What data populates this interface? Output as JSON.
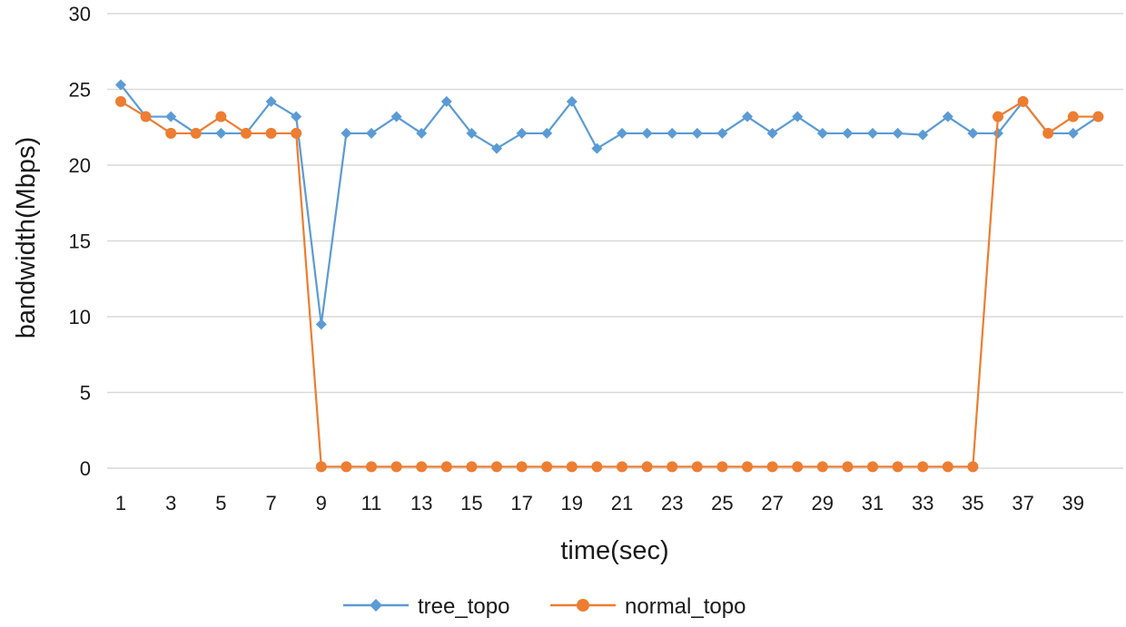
{
  "chart_data": {
    "type": "line",
    "title": "",
    "xlabel": "time(sec)",
    "ylabel": "bandwidth(Mbps)",
    "ylim": [
      0,
      30
    ],
    "yticks": [
      0,
      5,
      10,
      15,
      20,
      25,
      30
    ],
    "x": [
      1,
      2,
      3,
      4,
      5,
      6,
      7,
      8,
      9,
      10,
      11,
      12,
      13,
      14,
      15,
      16,
      17,
      18,
      19,
      20,
      21,
      22,
      23,
      24,
      25,
      26,
      27,
      28,
      29,
      30,
      31,
      32,
      33,
      34,
      35,
      36,
      37,
      38,
      39,
      40
    ],
    "xtick_labels": [
      "1",
      "3",
      "5",
      "7",
      "9",
      "11",
      "13",
      "15",
      "17",
      "19",
      "21",
      "23",
      "25",
      "27",
      "29",
      "31",
      "33",
      "35",
      "37",
      "39"
    ],
    "grid": "horizontal",
    "legend_position": "bottom",
    "series": [
      {
        "name": "tree_topo",
        "color": "#5B9BD5",
        "marker": "diamond",
        "values": [
          25.3,
          23.2,
          23.2,
          22.1,
          22.1,
          22.1,
          24.2,
          23.2,
          9.5,
          22.1,
          22.1,
          23.2,
          22.1,
          24.2,
          22.1,
          21.1,
          22.1,
          22.1,
          24.2,
          21.1,
          22.1,
          22.1,
          22.1,
          22.1,
          22.1,
          23.2,
          22.1,
          23.2,
          22.1,
          22.1,
          22.1,
          22.1,
          22.0,
          23.2,
          22.1,
          22.1,
          24.2,
          22.1,
          22.1,
          23.2
        ]
      },
      {
        "name": "normal_topo",
        "color": "#ED7D31",
        "marker": "circle",
        "values": [
          24.2,
          23.2,
          22.1,
          22.1,
          23.2,
          22.1,
          22.1,
          22.1,
          0.1,
          0.1,
          0.1,
          0.1,
          0.1,
          0.1,
          0.1,
          0.1,
          0.1,
          0.1,
          0.1,
          0.1,
          0.1,
          0.1,
          0.1,
          0.1,
          0.1,
          0.1,
          0.1,
          0.1,
          0.1,
          0.1,
          0.1,
          0.1,
          0.1,
          0.1,
          0.1,
          23.2,
          24.2,
          22.1,
          23.2,
          23.2
        ]
      }
    ]
  }
}
